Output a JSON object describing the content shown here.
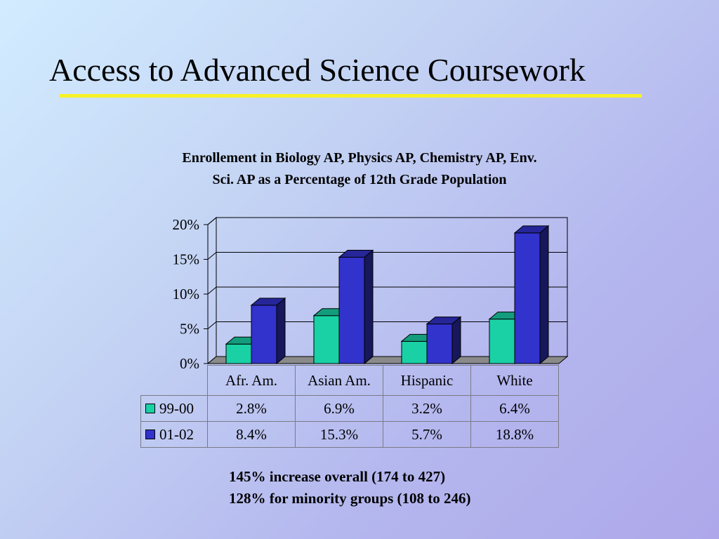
{
  "slide": {
    "title": "Access to Advanced Science Coursework",
    "subtitle_line1": "Enrollement in Biology AP, Physics AP, Chemistry AP, Env.",
    "subtitle_line2": "Sci. AP as a Percentage of 12th Grade Population",
    "notes": [
      "145% increase overall (174 to 427)",
      "128% for minority groups (108 to 246)"
    ]
  },
  "colors": {
    "title_rule": "#f7f224",
    "series_99_00": "#1ad1a5",
    "series_01_02": "#3232cc"
  },
  "chart_data": {
    "type": "bar",
    "style": "3d-clustered-column",
    "title": "Enrollement in Biology AP, Physics AP, Chemistry AP, Env. Sci. AP as a Percentage of 12th Grade Population",
    "categories": [
      "Afr. Am.",
      "Asian Am.",
      "Hispanic",
      "White"
    ],
    "series": [
      {
        "name": "99-00",
        "values": [
          2.8,
          6.9,
          3.2,
          6.4
        ],
        "labels": [
          "2.8%",
          "6.9%",
          "3.2%",
          "6.4%"
        ],
        "color": "#1ad1a5"
      },
      {
        "name": "01-02",
        "values": [
          8.4,
          15.3,
          5.7,
          18.8
        ],
        "labels": [
          "8.4%",
          "15.3%",
          "5.7%",
          "18.8%"
        ],
        "color": "#3232cc"
      }
    ],
    "yticks": [
      0,
      5,
      10,
      15,
      20
    ],
    "ytick_labels": [
      "0%",
      "5%",
      "10%",
      "15%",
      "20%"
    ],
    "ylim": [
      0,
      20
    ],
    "grid": true,
    "legend": "data-table"
  }
}
